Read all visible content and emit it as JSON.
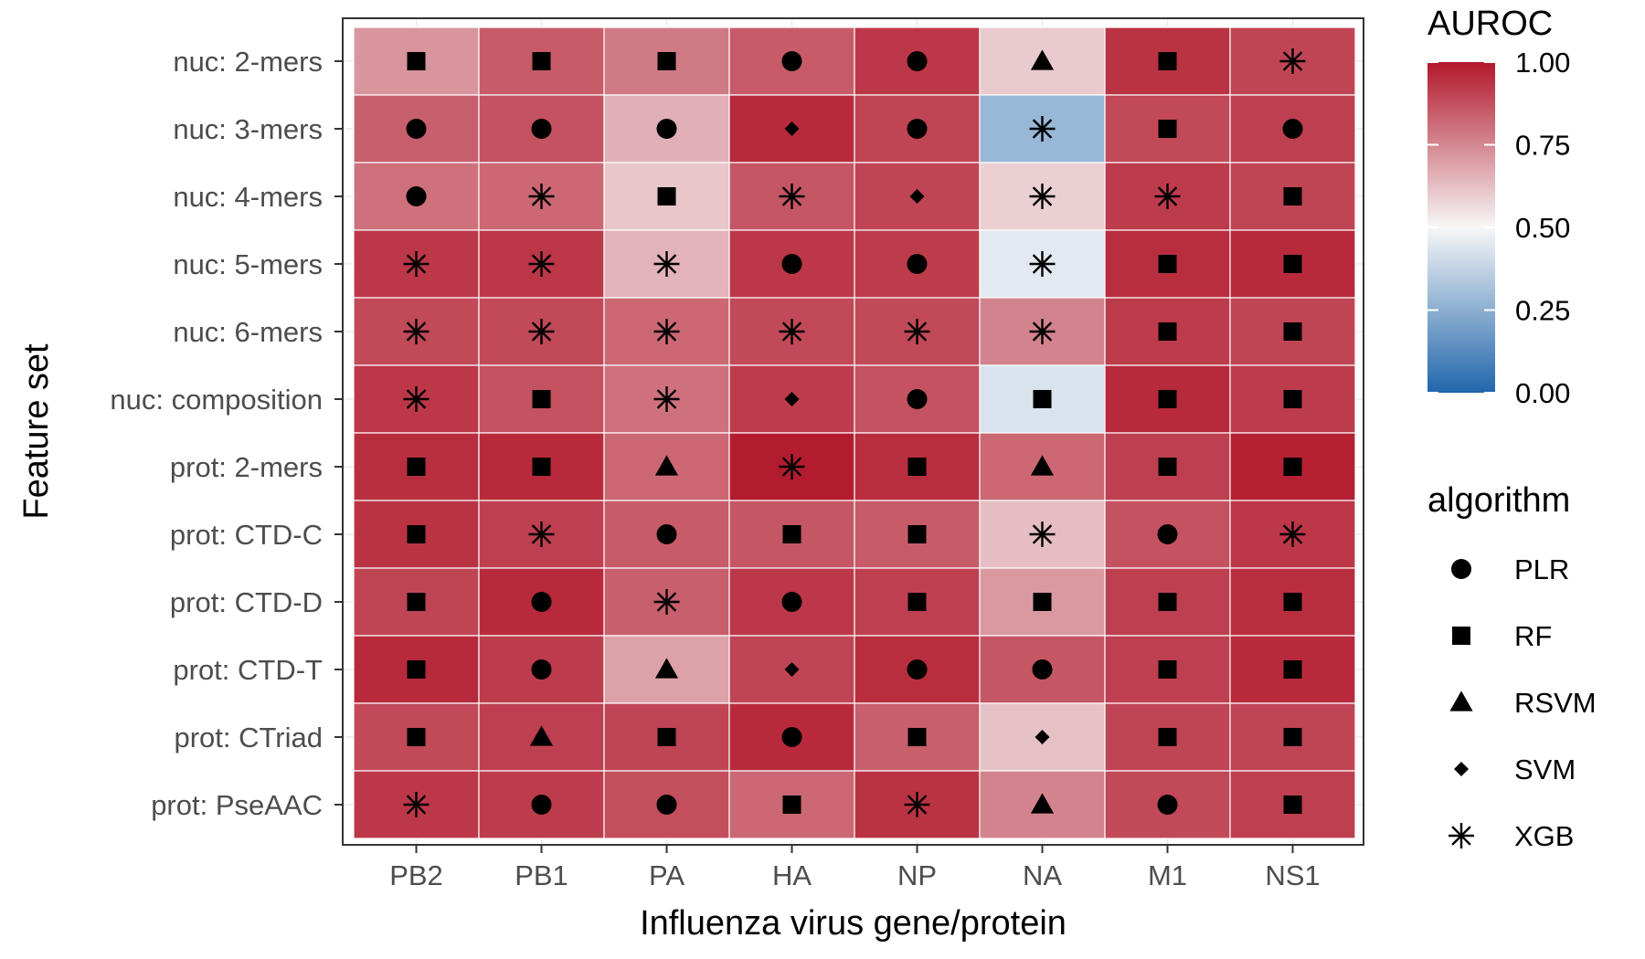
{
  "chart_data": {
    "type": "heatmap",
    "title": "",
    "xlabel": "Influenza virus gene/protein",
    "ylabel": "Feature set",
    "x_categories": [
      "PB2",
      "PB1",
      "PA",
      "HA",
      "NP",
      "NA",
      "M1",
      "NS1"
    ],
    "y_categories": [
      "nuc: 2-mers",
      "nuc: 3-mers",
      "nuc: 4-mers",
      "nuc: 5-mers",
      "nuc: 6-mers",
      "nuc: composition",
      "prot: 2-mers",
      "prot: CTD-C",
      "prot: CTD-D",
      "prot: CTD-T",
      "prot: CTriad",
      "prot: PseAAC"
    ],
    "values": [
      [
        0.72,
        0.85,
        0.78,
        0.85,
        0.93,
        0.6,
        0.94,
        0.9
      ],
      [
        0.84,
        0.87,
        0.66,
        0.96,
        0.9,
        0.28,
        0.89,
        0.91
      ],
      [
        0.8,
        0.82,
        0.61,
        0.86,
        0.9,
        0.59,
        0.92,
        0.9
      ],
      [
        0.93,
        0.93,
        0.65,
        0.93,
        0.92,
        0.45,
        0.95,
        0.96
      ],
      [
        0.89,
        0.89,
        0.82,
        0.89,
        0.89,
        0.76,
        0.92,
        0.9
      ],
      [
        0.93,
        0.87,
        0.8,
        0.92,
        0.87,
        0.43,
        0.96,
        0.92
      ],
      [
        0.95,
        0.96,
        0.82,
        0.99,
        0.95,
        0.82,
        0.91,
        0.98
      ],
      [
        0.94,
        0.91,
        0.85,
        0.86,
        0.85,
        0.63,
        0.87,
        0.93
      ],
      [
        0.9,
        0.96,
        0.84,
        0.93,
        0.91,
        0.71,
        0.91,
        0.95
      ],
      [
        0.96,
        0.92,
        0.69,
        0.9,
        0.95,
        0.86,
        0.91,
        0.96
      ],
      [
        0.89,
        0.91,
        0.9,
        0.96,
        0.84,
        0.62,
        0.9,
        0.9
      ],
      [
        0.93,
        0.92,
        0.88,
        0.82,
        0.94,
        0.76,
        0.89,
        0.91
      ]
    ],
    "algorithm": [
      [
        "RF",
        "RF",
        "RF",
        "PLR",
        "PLR",
        "RSVM",
        "RF",
        "XGB"
      ],
      [
        "PLR",
        "PLR",
        "PLR",
        "SVM",
        "PLR",
        "XGB",
        "RF",
        "PLR"
      ],
      [
        "PLR",
        "XGB",
        "RF",
        "XGB",
        "SVM",
        "XGB",
        "XGB",
        "RF"
      ],
      [
        "XGB",
        "XGB",
        "XGB",
        "PLR",
        "PLR",
        "XGB",
        "RF",
        "RF"
      ],
      [
        "XGB",
        "XGB",
        "XGB",
        "XGB",
        "XGB",
        "XGB",
        "RF",
        "RF"
      ],
      [
        "XGB",
        "RF",
        "XGB",
        "SVM",
        "PLR",
        "RF",
        "RF",
        "RF"
      ],
      [
        "RF",
        "RF",
        "RSVM",
        "XGB",
        "RF",
        "RSVM",
        "RF",
        "RF"
      ],
      [
        "RF",
        "XGB",
        "PLR",
        "RF",
        "RF",
        "XGB",
        "PLR",
        "XGB"
      ],
      [
        "RF",
        "PLR",
        "XGB",
        "PLR",
        "RF",
        "RF",
        "RF",
        "RF"
      ],
      [
        "RF",
        "PLR",
        "RSVM",
        "SVM",
        "PLR",
        "PLR",
        "RF",
        "RF"
      ],
      [
        "RF",
        "RSVM",
        "RF",
        "PLR",
        "RF",
        "SVM",
        "RF",
        "RF"
      ],
      [
        "XGB",
        "PLR",
        "PLR",
        "RF",
        "XGB",
        "RSVM",
        "PLR",
        "RF"
      ]
    ],
    "colorbar": {
      "title": "AUROC",
      "range": [
        0,
        1
      ],
      "ticks": [
        "0.00",
        "0.25",
        "0.50",
        "0.75",
        "1.00"
      ],
      "colors": [
        "#2166ac",
        "#f7f7f7",
        "#b2182b"
      ]
    },
    "shape_legend": {
      "title": "algorithm",
      "items": [
        {
          "label": "PLR",
          "shape": "circle"
        },
        {
          "label": "RF",
          "shape": "square"
        },
        {
          "label": "RSVM",
          "shape": "triangle"
        },
        {
          "label": "SVM",
          "shape": "diamond"
        },
        {
          "label": "XGB",
          "shape": "asterisk"
        }
      ]
    },
    "grid": true,
    "legend_position": "right"
  }
}
